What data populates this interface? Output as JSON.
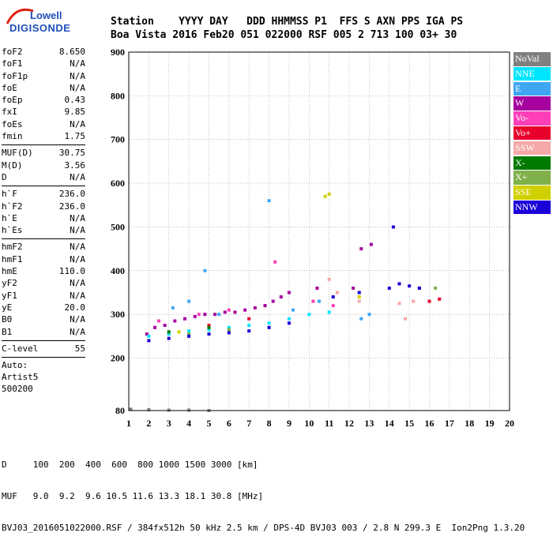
{
  "logo": {
    "line1": "Lowell",
    "line2": "DIGISONDE"
  },
  "header": {
    "keys": "Station    YYYY DAY   DDD HHMMSS P1  FFS S AXN PPS IGA PS",
    "values": "Boa Vista 2016 Feb20 051 022000 RSF 005 2 713 100 03+ 30"
  },
  "params_group1": [
    {
      "k": "foF2",
      "v": "8.650"
    },
    {
      "k": "foF1",
      "v": "N/A"
    },
    {
      "k": "foF1p",
      "v": "N/A"
    },
    {
      "k": "foE",
      "v": "N/A"
    },
    {
      "k": "foEp",
      "v": "0.43"
    },
    {
      "k": "fxI",
      "v": "9.85"
    },
    {
      "k": "foEs",
      "v": "N/A"
    },
    {
      "k": "fmin",
      "v": "1.75"
    }
  ],
  "params_group2": [
    {
      "k": "MUF(D)",
      "v": "30.75"
    },
    {
      "k": "M(D)",
      "v": "3.56"
    },
    {
      "k": "D",
      "v": "N/A"
    }
  ],
  "params_group3": [
    {
      "k": "h`F",
      "v": "236.0"
    },
    {
      "k": "h`F2",
      "v": "236.0"
    },
    {
      "k": "h`E",
      "v": "N/A"
    },
    {
      "k": "h`Es",
      "v": "N/A"
    }
  ],
  "params_group4": [
    {
      "k": "hmF2",
      "v": "N/A"
    },
    {
      "k": "hmF1",
      "v": "N/A"
    },
    {
      "k": "hmE",
      "v": "110.0"
    },
    {
      "k": "yF2",
      "v": "N/A"
    },
    {
      "k": "yF1",
      "v": "N/A"
    },
    {
      "k": "yE",
      "v": "20.0"
    },
    {
      "k": "B0",
      "v": "N/A"
    },
    {
      "k": "B1",
      "v": "N/A"
    }
  ],
  "params_group5": [
    {
      "k": "C-level",
      "v": "55"
    }
  ],
  "autoscaler": {
    "line1": "Auto:",
    "line2": "Artist5",
    "line3": "500200"
  },
  "legend": [
    {
      "name": "NoVal",
      "color": "#808080"
    },
    {
      "name": "NNE",
      "color": "#00e5ff"
    },
    {
      "name": "E",
      "color": "#3ea6f5"
    },
    {
      "name": "W",
      "color": "#a6009e"
    },
    {
      "name": "Vo-",
      "color": "#ff3fb8"
    },
    {
      "name": "Vo+",
      "color": "#e8002a"
    },
    {
      "name": "SSW",
      "color": "#f5a8a8"
    },
    {
      "name": "X-",
      "color": "#007a00"
    },
    {
      "name": "X+",
      "color": "#7fb04a"
    },
    {
      "name": "SSE",
      "color": "#d0d000"
    },
    {
      "name": "NNW",
      "color": "#1b00d8"
    }
  ],
  "footer": {
    "line1": "D     100  200  400  600  800 1000 1500 3000 [km]",
    "line2": "MUF   9.0  9.2  9.6 10.5 11.6 13.3 18.1 30.8 [MHz]",
    "line3": "BVJ03_2016051022000.RSF / 384fx512h 50 kHz 2.5 km / DPS-4D BVJ03 003 / 2.8 N 299.3 E  Ion2Png 1.3.20"
  },
  "chart_data": {
    "type": "scatter",
    "title": "",
    "xlabel": "",
    "ylabel": "",
    "xlim": [
      1,
      20
    ],
    "ylim": [
      80,
      900
    ],
    "xticks": [
      "1",
      "2",
      "3",
      "4",
      "5",
      "6",
      "7",
      "8",
      "9",
      "10",
      "11",
      "12",
      "13",
      "14",
      "15",
      "16",
      "17",
      "18",
      "19",
      "20"
    ],
    "yticks": [
      "900",
      "800",
      "700",
      "600",
      "500",
      "400",
      "300",
      "200",
      "80"
    ],
    "grid": true,
    "series": [
      {
        "name": "W",
        "color": "#a6009e",
        "points": [
          [
            1.9,
            255
          ],
          [
            2.3,
            270
          ],
          [
            2.8,
            275
          ],
          [
            3.3,
            285
          ],
          [
            3.8,
            290
          ],
          [
            4.3,
            295
          ],
          [
            4.8,
            300
          ],
          [
            5.3,
            300
          ],
          [
            5.8,
            305
          ],
          [
            6.3,
            305
          ],
          [
            6.8,
            310
          ],
          [
            7.3,
            315
          ],
          [
            7.8,
            320
          ],
          [
            8.2,
            330
          ],
          [
            8.6,
            340
          ],
          [
            9.0,
            350
          ],
          [
            10.4,
            360
          ],
          [
            12.2,
            360
          ],
          [
            12.6,
            450
          ],
          [
            13.1,
            460
          ]
        ]
      },
      {
        "name": "NNE",
        "color": "#00e5ff",
        "points": [
          [
            2.0,
            250
          ],
          [
            3.0,
            255
          ],
          [
            4.0,
            262
          ],
          [
            5.0,
            265
          ],
          [
            6.0,
            270
          ],
          [
            7.0,
            275
          ],
          [
            8.0,
            280
          ],
          [
            9.0,
            290
          ],
          [
            10.0,
            300
          ],
          [
            11.0,
            305
          ]
        ]
      },
      {
        "name": "E",
        "color": "#3ea6f5",
        "points": [
          [
            3.2,
            315
          ],
          [
            4.0,
            330
          ],
          [
            4.8,
            400
          ],
          [
            5.5,
            300
          ],
          [
            8.0,
            560
          ],
          [
            9.2,
            310
          ],
          [
            10.5,
            330
          ],
          [
            12.6,
            290
          ],
          [
            13.0,
            300
          ]
        ]
      },
      {
        "name": "Vo-",
        "color": "#ff3fb8",
        "points": [
          [
            2.5,
            285
          ],
          [
            4.5,
            300
          ],
          [
            6.0,
            310
          ],
          [
            8.3,
            420
          ],
          [
            10.2,
            330
          ],
          [
            11.2,
            320
          ]
        ]
      },
      {
        "name": "Vo+",
        "color": "#e8002a",
        "points": [
          [
            5.0,
            275
          ],
          [
            7.0,
            290
          ],
          [
            16.0,
            330
          ],
          [
            16.5,
            335
          ]
        ]
      },
      {
        "name": "SSW",
        "color": "#f5a8a8",
        "points": [
          [
            11.0,
            380
          ],
          [
            11.4,
            350
          ],
          [
            12.5,
            330
          ],
          [
            14.5,
            325
          ],
          [
            15.2,
            330
          ],
          [
            14.8,
            290
          ]
        ]
      },
      {
        "name": "X-",
        "color": "#007a00",
        "points": [
          [
            3.0,
            260
          ],
          [
            5.0,
            270
          ],
          [
            15.5,
            360
          ]
        ]
      },
      {
        "name": "X+",
        "color": "#7fb04a",
        "points": [
          [
            4.0,
            255
          ],
          [
            6.0,
            265
          ],
          [
            16.3,
            360
          ]
        ]
      },
      {
        "name": "SSE",
        "color": "#d0d000",
        "points": [
          [
            3.5,
            260
          ],
          [
            10.8,
            570
          ],
          [
            11.0,
            575
          ],
          [
            12.5,
            340
          ]
        ]
      },
      {
        "name": "NNW",
        "color": "#1b00d8",
        "points": [
          [
            2.0,
            240
          ],
          [
            3.0,
            245
          ],
          [
            4.0,
            250
          ],
          [
            5.0,
            255
          ],
          [
            6.0,
            258
          ],
          [
            7.0,
            262
          ],
          [
            8.0,
            270
          ],
          [
            9.0,
            280
          ],
          [
            11.2,
            340
          ],
          [
            12.5,
            350
          ],
          [
            14.0,
            360
          ],
          [
            14.5,
            370
          ],
          [
            15.0,
            365
          ],
          [
            15.5,
            360
          ],
          [
            14.2,
            500
          ]
        ]
      },
      {
        "name": "NoVal",
        "color": "#808080",
        "points": [
          [
            1.1,
            83
          ],
          [
            2.0,
            82
          ],
          [
            3.0,
            81
          ],
          [
            4.0,
            81
          ],
          [
            5.0,
            80
          ]
        ]
      }
    ]
  }
}
